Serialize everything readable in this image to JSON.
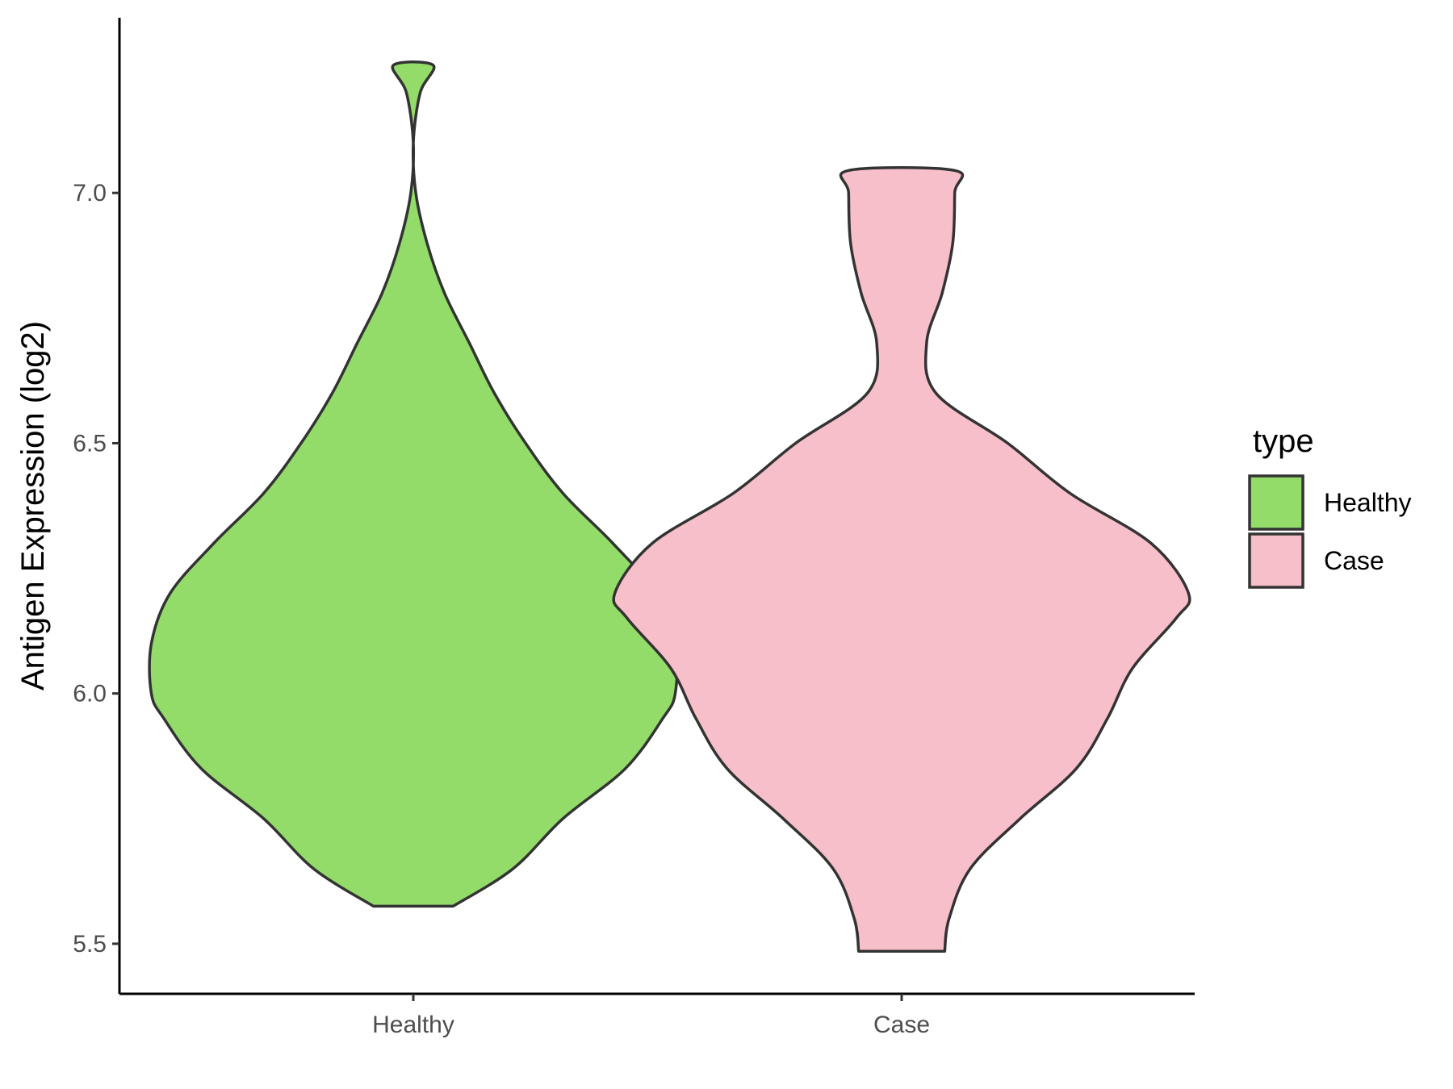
{
  "chart_data": {
    "type": "violin",
    "ylabel": "Antigen Expression (log2)",
    "xlabel": "",
    "ylim": [
      5.4,
      7.35
    ],
    "yticks": [
      5.5,
      6.0,
      6.5,
      7.0
    ],
    "ytick_labels": [
      "5.5",
      "6.0",
      "6.5",
      "7.0"
    ],
    "categories": [
      "Healthy",
      "Case"
    ],
    "grid": false,
    "legend": {
      "title": "type",
      "position": "right",
      "entries": [
        "Healthy",
        "Case"
      ]
    },
    "series": [
      {
        "name": "Healthy",
        "color": "#93DC6A",
        "min": 5.575,
        "max": 7.255,
        "density": [
          [
            5.575,
            0.064
          ],
          [
            5.65,
            0.16
          ],
          [
            5.75,
            0.24
          ],
          [
            5.85,
            0.34
          ],
          [
            5.95,
            0.4
          ],
          [
            6.0,
            0.42
          ],
          [
            6.1,
            0.42
          ],
          [
            6.2,
            0.39
          ],
          [
            6.3,
            0.32
          ],
          [
            6.4,
            0.24
          ],
          [
            6.5,
            0.18
          ],
          [
            6.6,
            0.13
          ],
          [
            6.7,
            0.09
          ],
          [
            6.8,
            0.05
          ],
          [
            6.9,
            0.022
          ],
          [
            7.0,
            0.004
          ],
          [
            7.1,
            0.0
          ],
          [
            7.2,
            0.011
          ],
          [
            7.255,
            0.032
          ]
        ]
      },
      {
        "name": "Case",
        "color": "#F7BFCA",
        "min": 5.485,
        "max": 7.045,
        "density": [
          [
            5.485,
            0.069
          ],
          [
            5.55,
            0.076
          ],
          [
            5.65,
            0.11
          ],
          [
            5.75,
            0.19
          ],
          [
            5.85,
            0.28
          ],
          [
            5.95,
            0.33
          ],
          [
            6.05,
            0.37
          ],
          [
            6.15,
            0.44
          ],
          [
            6.2,
            0.46
          ],
          [
            6.3,
            0.4
          ],
          [
            6.4,
            0.27
          ],
          [
            6.5,
            0.17
          ],
          [
            6.6,
            0.055
          ],
          [
            6.7,
            0.04
          ],
          [
            6.8,
            0.065
          ],
          [
            6.9,
            0.082
          ],
          [
            7.0,
            0.085
          ],
          [
            7.045,
            0.085
          ]
        ]
      }
    ]
  }
}
